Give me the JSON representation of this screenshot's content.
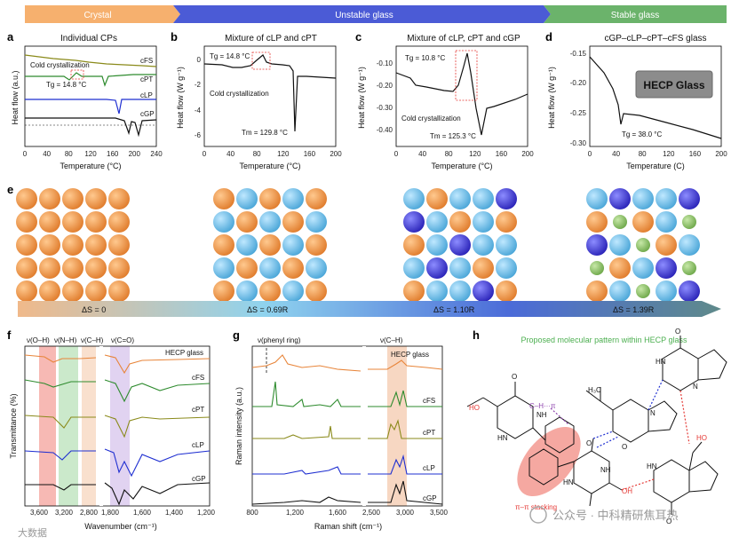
{
  "header": {
    "bands": [
      {
        "label": "Crystal",
        "color": "#f4a15a"
      },
      {
        "label": "Unstable glass",
        "color": "#4b5bd6"
      },
      {
        "label": "Stable glass",
        "color": "#6bb36b"
      }
    ]
  },
  "panels": {
    "a": {
      "letter": "a",
      "title": "Individual CPs",
      "ylabel": "Heat flow (a.u.)",
      "xlabel": "Temperature (°C)",
      "xticks": [
        "0",
        "40",
        "80",
        "120",
        "160",
        "200",
        "240"
      ],
      "annotations": {
        "cold": "Cold crystallization",
        "tg": "Tg = 14.8 °C"
      },
      "curve_labels": [
        "cFS",
        "cPT",
        "cLP",
        "cGP"
      ]
    },
    "b": {
      "letter": "b",
      "title": "Mixture of cLP and cPT",
      "ylabel": "Heat flow (W g⁻¹)",
      "xlabel": "Temperature (°C)",
      "xticks": [
        "0",
        "40",
        "80",
        "120",
        "160",
        "200"
      ],
      "yticks": [
        "0",
        "-2",
        "-4",
        "-6"
      ],
      "annotations": {
        "tg": "Tg = 14.8 °C",
        "cold": "Cold crystallization",
        "tm": "Tm = 129.8 °C"
      }
    },
    "c": {
      "letter": "c",
      "title": "Mixture of cLP, cPT and cGP",
      "ylabel": "Heat flow (W g⁻¹)",
      "xlabel": "Temperature (°C)",
      "xticks": [
        "0",
        "40",
        "80",
        "120",
        "160",
        "200"
      ],
      "yticks": [
        "-0.10",
        "-0.20",
        "-0.30",
        "-0.40"
      ],
      "annotations": {
        "tg": "Tg = 10.8 °C",
        "cold": "Cold crystallization",
        "tm": "Tm = 125.3 °C"
      }
    },
    "d": {
      "letter": "d",
      "title": "cGP–cLP–cPT–cFS glass",
      "ylabel": "Heat flow (W g⁻¹)",
      "xlabel": "Temperature (C)",
      "xticks": [
        "0",
        "40",
        "80",
        "120",
        "160",
        "200"
      ],
      "yticks": [
        "-0.15",
        "-0.20",
        "-0.25",
        "-0.30"
      ],
      "annotations": {
        "tg": "Tg = 38.0 °C",
        "inset": "HECP Glass"
      }
    },
    "e": {
      "letter": "e",
      "entropy": [
        "ΔS = 0",
        "ΔS = 0.69R",
        "ΔS = 1.10R",
        "ΔS = 1.39R"
      ]
    },
    "f": {
      "letter": "f",
      "ylabel": "Transmittance (%)",
      "xlabel": "Wavenumber (cm⁻¹)",
      "xticks": [
        "3,600",
        "3,200",
        "2,800",
        "1,800",
        "1,600",
        "1,400",
        "1,200"
      ],
      "bands": [
        "ν(O–H)",
        "ν(N–H)",
        "ν(C–H)",
        "ν(C=O)"
      ],
      "curve_labels": [
        "HECP glass",
        "cFS",
        "cPT",
        "cLP",
        "cGP"
      ]
    },
    "g": {
      "letter": "g",
      "ylabel": "Raman intensity (a.u.)",
      "xlabel": "Raman shift (cm⁻¹)",
      "xticks": [
        "800",
        "1,200",
        "1,600",
        "2,500",
        "3,000",
        "3,500"
      ],
      "bands": [
        "ν(phenyl ring)",
        "ν(C–H)"
      ],
      "curve_labels": [
        "HECP glass",
        "cFS",
        "cPT",
        "cLP",
        "cGP"
      ]
    },
    "h": {
      "letter": "h",
      "title": "Proposed molecular pattern within HECP glass",
      "labels": {
        "ch_pi": "C–H···π",
        "pi_pi": "π–π stacking"
      }
    }
  },
  "watermark": {
    "left": "大数据",
    "right": "公众号 · 中科精研焦耳热"
  },
  "colors": {
    "orange": "#e8853a",
    "green": "#2e8b2e",
    "olive": "#8a8a1a",
    "blue": "#1f2fd1",
    "black": "#111111",
    "red": "#e53935"
  }
}
